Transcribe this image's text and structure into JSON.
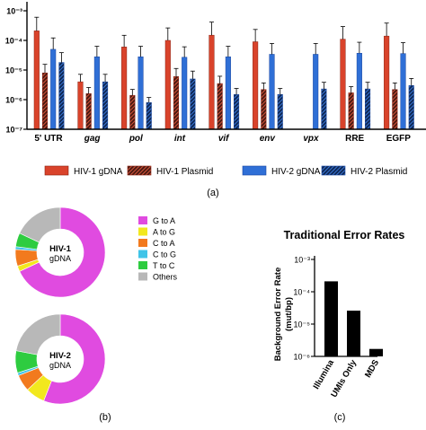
{
  "panel_labels": {
    "a": "(a)",
    "b": "(b)",
    "c": "(c)"
  },
  "colors": {
    "hiv1_gdna": "#d9432b",
    "hiv1_plasmid": "#d9432b",
    "hiv2_gdna": "#2f6fd6",
    "hiv2_plasmid": "#2f6fd6",
    "g_to_a": "#e04be0",
    "a_to_g": "#f2e81e",
    "c_to_a": "#f27a1e",
    "c_to_g": "#3fc4e8",
    "t_to_c": "#2ecc40",
    "others": "#b8b8b8",
    "bar_c": "#000000"
  },
  "chart_data": [
    {
      "id": "a",
      "type": "bar",
      "yscale": "log",
      "ylim": [
        1e-07,
        0.001
      ],
      "ytick_labels": [
        "10⁻³",
        "10⁻⁴",
        "10⁻⁵",
        "10⁻⁶",
        "10⁻⁷"
      ],
      "categories": [
        "5' UTR",
        "gag",
        "pol",
        "int",
        "vif",
        "env",
        "vpx",
        "RRE",
        "EGFP"
      ],
      "italic_categories": [
        "gag",
        "pol",
        "int",
        "vif",
        "env",
        "vpx"
      ],
      "series": [
        {
          "name": "HIV-1 gDNA",
          "pattern": "solid",
          "values": [
            0.00021,
            4e-06,
            6e-05,
            0.0001,
            0.00015,
            9e-05,
            null,
            0.00011,
            0.00014
          ]
        },
        {
          "name": "HIV-1 Plasmid",
          "pattern": "hatch",
          "values": [
            8e-06,
            1.6e-06,
            1.4e-06,
            6e-06,
            3.5e-06,
            2.2e-06,
            null,
            1.7e-06,
            2.2e-06
          ]
        },
        {
          "name": "HIV-2 gDNA",
          "pattern": "solid",
          "values": [
            5e-05,
            2.8e-05,
            2.8e-05,
            2.7e-05,
            2.8e-05,
            3.4e-05,
            3.4e-05,
            3.7e-05,
            3.6e-05
          ]
        },
        {
          "name": "HIV-2 Plasmid",
          "pattern": "hatch",
          "values": [
            1.8e-05,
            4e-06,
            8e-07,
            5e-06,
            1.5e-06,
            1.5e-06,
            2.3e-06,
            2.3e-06,
            3e-06
          ]
        }
      ]
    },
    {
      "id": "b",
      "type": "pie",
      "donuts": [
        {
          "label_line1": "HIV-1",
          "label_line2": "gDNA",
          "slices": [
            {
              "name": "G to A",
              "value": 68
            },
            {
              "name": "A to G",
              "value": 2
            },
            {
              "name": "C to A",
              "value": 6
            },
            {
              "name": "C to G",
              "value": 1
            },
            {
              "name": "T to C",
              "value": 5
            },
            {
              "name": "Others",
              "value": 18
            }
          ]
        },
        {
          "label_line1": "HIV-2",
          "label_line2": "gDNA",
          "slices": [
            {
              "name": "G to A",
              "value": 56
            },
            {
              "name": "A to G",
              "value": 7
            },
            {
              "name": "C to A",
              "value": 6
            },
            {
              "name": "C to G",
              "value": 1
            },
            {
              "name": "T to C",
              "value": 8
            },
            {
              "name": "Others",
              "value": 22
            }
          ]
        }
      ],
      "legend": [
        "G to A",
        "A to G",
        "C to A",
        "C to G",
        "T to C",
        "Others"
      ]
    },
    {
      "id": "c",
      "type": "bar",
      "title": "Traditional Error Rates",
      "ylabel_line1": "Background Error Rate",
      "ylabel_line2": "(mut/bp)",
      "yscale": "log",
      "ylim": [
        1e-06,
        0.001
      ],
      "ytick_labels": [
        "10⁻³",
        "10⁻⁴",
        "10⁻⁵",
        "10⁻⁶"
      ],
      "categories": [
        "Illumina",
        "UMIs Only",
        "MDS"
      ],
      "values": [
        0.00021,
        2.6e-05,
        1.7e-06
      ]
    }
  ]
}
